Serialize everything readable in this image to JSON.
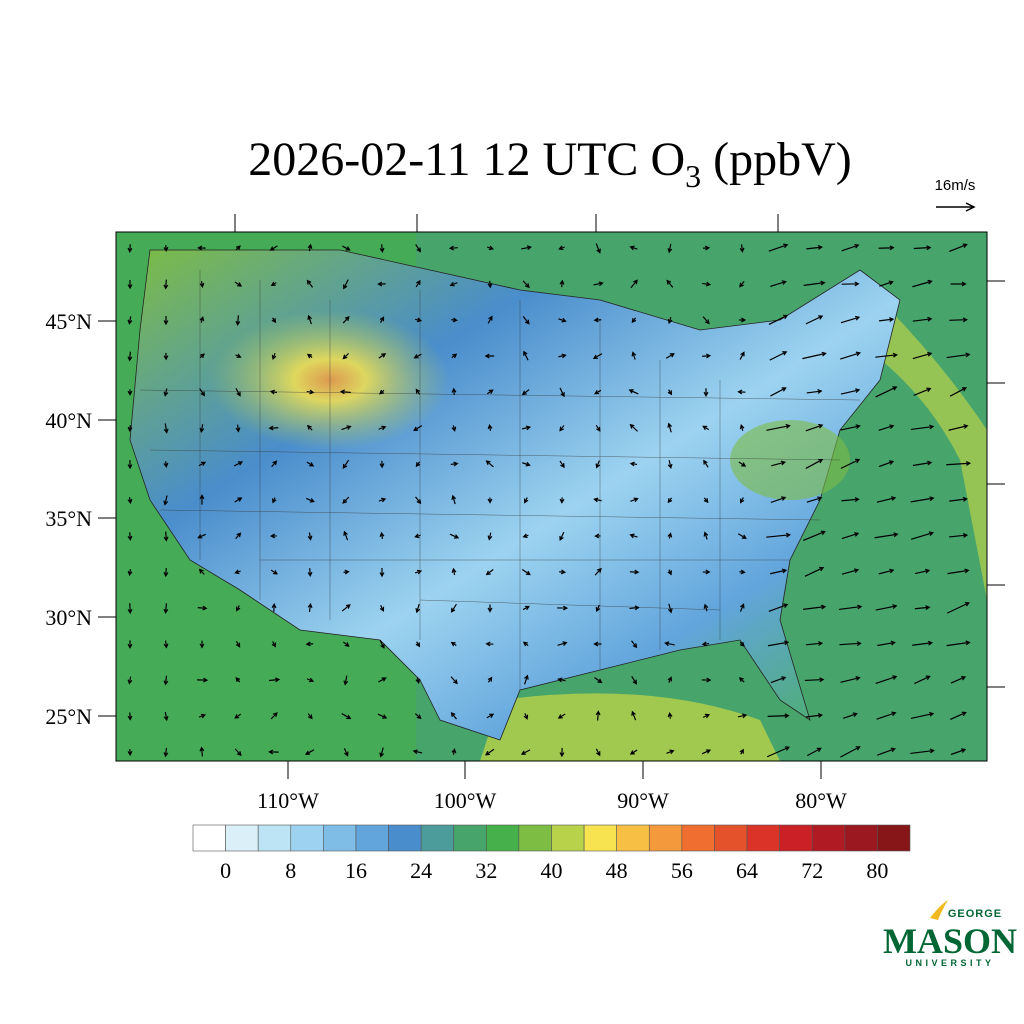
{
  "title": {
    "text": "2026-02-11 12 UTC O",
    "subscript": "3",
    "suffix": " (ppbV)"
  },
  "wind_reference": "16m/s",
  "map": {
    "lat_labels": [
      "45°N",
      "40°N",
      "35°N",
      "30°N",
      "25°N"
    ],
    "lon_labels": [
      "110°W",
      "100°W",
      "90°W",
      "80°W"
    ]
  },
  "colorbar": {
    "colors": [
      "#ffffff",
      "#dbeff9",
      "#bde4f5",
      "#9dd3f0",
      "#7fbde6",
      "#62a5dc",
      "#4a8dcc",
      "#4b9c9b",
      "#47a46b",
      "#46b04a",
      "#7dbd44",
      "#b8d24a",
      "#f7e34f",
      "#f7c044",
      "#f59a3c",
      "#f06e2f",
      "#e4522c",
      "#db3328",
      "#cc2027",
      "#b01a22",
      "#9b1820",
      "#871619"
    ],
    "tick_labels": [
      0,
      8,
      16,
      24,
      32,
      40,
      48,
      56,
      64,
      72,
      80
    ]
  },
  "logo": {
    "top": "GEORGE",
    "main": "MASON",
    "bottom": "UNIVERSITY"
  }
}
